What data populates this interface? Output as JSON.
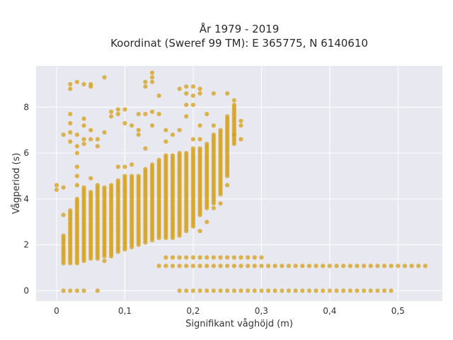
{
  "chart_data": {
    "type": "scatter",
    "title": "År 1979 - 2019",
    "subtitle": "Koordinat (Sweref 99 TM): E 365775, N 6140610",
    "xlabel": "Signifikant våghöjd (m)",
    "ylabel": "Vågperiod (s)",
    "xlim": [
      -0.03,
      0.565
    ],
    "ylim": [
      -0.45,
      9.8
    ],
    "x_ticks": [
      0,
      0.1,
      0.2,
      0.3,
      0.4,
      0.5
    ],
    "x_tick_labels": [
      "0",
      "0,1",
      "0,2",
      "0,3",
      "0,4",
      "0,5"
    ],
    "y_ticks": [
      0,
      2,
      4,
      6,
      8
    ],
    "y_tick_labels": [
      "0",
      "2",
      "4",
      "6",
      "8"
    ],
    "grid": true,
    "legend": "none",
    "colors": {
      "marker": "#d4a017",
      "plot_bg": "#e8e8f0",
      "grid": "#ffffff"
    },
    "columns": [
      {
        "x": 0.01,
        "ymin": 1.2,
        "ymax": 2.4
      },
      {
        "x": 0.02,
        "ymin": 1.2,
        "ymax": 3.5
      },
      {
        "x": 0.03,
        "ymin": 1.2,
        "ymax": 4.0
      },
      {
        "x": 0.04,
        "ymin": 1.3,
        "ymax": 4.5
      },
      {
        "x": 0.05,
        "ymin": 1.4,
        "ymax": 4.3
      },
      {
        "x": 0.06,
        "ymin": 1.4,
        "ymax": 4.6
      },
      {
        "x": 0.07,
        "ymin": 1.5,
        "ymax": 4.5
      },
      {
        "x": 0.08,
        "ymin": 1.6,
        "ymax": 4.6
      },
      {
        "x": 0.09,
        "ymin": 1.7,
        "ymax": 4.8
      },
      {
        "x": 0.1,
        "ymin": 1.8,
        "ymax": 5.0
      },
      {
        "x": 0.11,
        "ymin": 1.9,
        "ymax": 5.0
      },
      {
        "x": 0.12,
        "ymin": 2.0,
        "ymax": 5.0
      },
      {
        "x": 0.13,
        "ymin": 2.1,
        "ymax": 5.3
      },
      {
        "x": 0.14,
        "ymin": 2.2,
        "ymax": 5.5
      },
      {
        "x": 0.15,
        "ymin": 2.3,
        "ymax": 5.7
      },
      {
        "x": 0.16,
        "ymin": 2.3,
        "ymax": 5.9
      },
      {
        "x": 0.17,
        "ymin": 2.3,
        "ymax": 5.9
      },
      {
        "x": 0.18,
        "ymin": 2.4,
        "ymax": 6.0
      },
      {
        "x": 0.19,
        "ymin": 2.6,
        "ymax": 6.0
      },
      {
        "x": 0.2,
        "ymin": 2.8,
        "ymax": 6.2
      },
      {
        "x": 0.21,
        "ymin": 3.3,
        "ymax": 6.2
      },
      {
        "x": 0.22,
        "ymin": 3.6,
        "ymax": 6.4
      },
      {
        "x": 0.23,
        "ymin": 3.8,
        "ymax": 6.8
      },
      {
        "x": 0.24,
        "ymin": 4.2,
        "ymax": 7.0
      },
      {
        "x": 0.25,
        "ymin": 5.0,
        "ymax": 7.6
      },
      {
        "x": 0.26,
        "ymin": 6.4,
        "ymax": 8.1
      }
    ],
    "rows": [
      {
        "y": 0,
        "xmin": 0.18,
        "xmax": 0.48
      },
      {
        "y": 1.08,
        "xmin": 0.15,
        "xmax": 0.53
      },
      {
        "y": 1.45,
        "xmin": 0.16,
        "xmax": 0.3
      }
    ],
    "outliers": [
      {
        "x": 0,
        "y": 4.6
      },
      {
        "x": 0,
        "y": 4.4
      },
      {
        "x": 0.01,
        "y": 4.5
      },
      {
        "x": 0.01,
        "y": 6.8
      },
      {
        "x": 0.01,
        "y": 3.3
      },
      {
        "x": 0.02,
        "y": 9.0
      },
      {
        "x": 0.02,
        "y": 8.8
      },
      {
        "x": 0.02,
        "y": 7.7
      },
      {
        "x": 0.02,
        "y": 7.3
      },
      {
        "x": 0.02,
        "y": 6.9
      },
      {
        "x": 0.02,
        "y": 6.5
      },
      {
        "x": 0.03,
        "y": 9.1
      },
      {
        "x": 0.03,
        "y": 6.8
      },
      {
        "x": 0.03,
        "y": 6.3
      },
      {
        "x": 0.03,
        "y": 6.0
      },
      {
        "x": 0.03,
        "y": 5.4
      },
      {
        "x": 0.03,
        "y": 5.0
      },
      {
        "x": 0.03,
        "y": 4.6
      },
      {
        "x": 0.04,
        "y": 9.0
      },
      {
        "x": 0.04,
        "y": 7.5
      },
      {
        "x": 0.04,
        "y": 7.2
      },
      {
        "x": 0.04,
        "y": 6.6
      },
      {
        "x": 0.04,
        "y": 6.4
      },
      {
        "x": 0.05,
        "y": 9.0
      },
      {
        "x": 0.05,
        "y": 8.9
      },
      {
        "x": 0.05,
        "y": 7.0
      },
      {
        "x": 0.05,
        "y": 6.6
      },
      {
        "x": 0.05,
        "y": 4.9
      },
      {
        "x": 0.06,
        "y": 6.6
      },
      {
        "x": 0.06,
        "y": 6.3
      },
      {
        "x": 0.07,
        "y": 9.3
      },
      {
        "x": 0.07,
        "y": 6.9
      },
      {
        "x": 0.07,
        "y": 1.3
      },
      {
        "x": 0.08,
        "y": 7.8
      },
      {
        "x": 0.08,
        "y": 7.6
      },
      {
        "x": 0.08,
        "y": 1.5
      },
      {
        "x": 0.09,
        "y": 7.9
      },
      {
        "x": 0.09,
        "y": 7.7
      },
      {
        "x": 0.09,
        "y": 5.4
      },
      {
        "x": 0.1,
        "y": 7.9
      },
      {
        "x": 0.1,
        "y": 7.3
      },
      {
        "x": 0.1,
        "y": 5.4
      },
      {
        "x": 0.11,
        "y": 7.2
      },
      {
        "x": 0.11,
        "y": 5.5
      },
      {
        "x": 0.12,
        "y": 7.7
      },
      {
        "x": 0.12,
        "y": 7.0
      },
      {
        "x": 0.12,
        "y": 6.8
      },
      {
        "x": 0.13,
        "y": 9.1
      },
      {
        "x": 0.13,
        "y": 8.9
      },
      {
        "x": 0.13,
        "y": 7.7
      },
      {
        "x": 0.13,
        "y": 6.2
      },
      {
        "x": 0.14,
        "y": 9.5
      },
      {
        "x": 0.14,
        "y": 9.3
      },
      {
        "x": 0.14,
        "y": 9.1
      },
      {
        "x": 0.14,
        "y": 7.8
      },
      {
        "x": 0.14,
        "y": 7.2
      },
      {
        "x": 0.15,
        "y": 8.5
      },
      {
        "x": 0.15,
        "y": 7.7
      },
      {
        "x": 0.16,
        "y": 7.0
      },
      {
        "x": 0.16,
        "y": 6.5
      },
      {
        "x": 0.17,
        "y": 6.8
      },
      {
        "x": 0.18,
        "y": 8.8
      },
      {
        "x": 0.18,
        "y": 7.0
      },
      {
        "x": 0.19,
        "y": 8.9
      },
      {
        "x": 0.19,
        "y": 8.6
      },
      {
        "x": 0.19,
        "y": 8.1
      },
      {
        "x": 0.19,
        "y": 7.6
      },
      {
        "x": 0.2,
        "y": 8.9
      },
      {
        "x": 0.2,
        "y": 8.5
      },
      {
        "x": 0.2,
        "y": 8.1
      },
      {
        "x": 0.2,
        "y": 6.6
      },
      {
        "x": 0.21,
        "y": 8.8
      },
      {
        "x": 0.21,
        "y": 8.6
      },
      {
        "x": 0.21,
        "y": 7.2
      },
      {
        "x": 0.21,
        "y": 6.6
      },
      {
        "x": 0.21,
        "y": 2.6
      },
      {
        "x": 0.22,
        "y": 3.0
      },
      {
        "x": 0.22,
        "y": 7.7
      },
      {
        "x": 0.23,
        "y": 8.6
      },
      {
        "x": 0.23,
        "y": 7.2
      },
      {
        "x": 0.23,
        "y": 3.6
      },
      {
        "x": 0.24,
        "y": 3.8
      },
      {
        "x": 0.25,
        "y": 8.6
      },
      {
        "x": 0.25,
        "y": 4.6
      },
      {
        "x": 0.26,
        "y": 8.3
      },
      {
        "x": 0.26,
        "y": 6.8
      },
      {
        "x": 0.27,
        "y": 7.4
      },
      {
        "x": 0.27,
        "y": 7.2
      },
      {
        "x": 0.27,
        "y": 6.6
      },
      {
        "x": 0.01,
        "y": 0
      },
      {
        "x": 0.02,
        "y": 0
      },
      {
        "x": 0.03,
        "y": 0
      },
      {
        "x": 0.04,
        "y": 0
      },
      {
        "x": 0.06,
        "y": 0
      },
      {
        "x": 0.49,
        "y": 0
      },
      {
        "x": 0.54,
        "y": 1.08
      }
    ]
  }
}
